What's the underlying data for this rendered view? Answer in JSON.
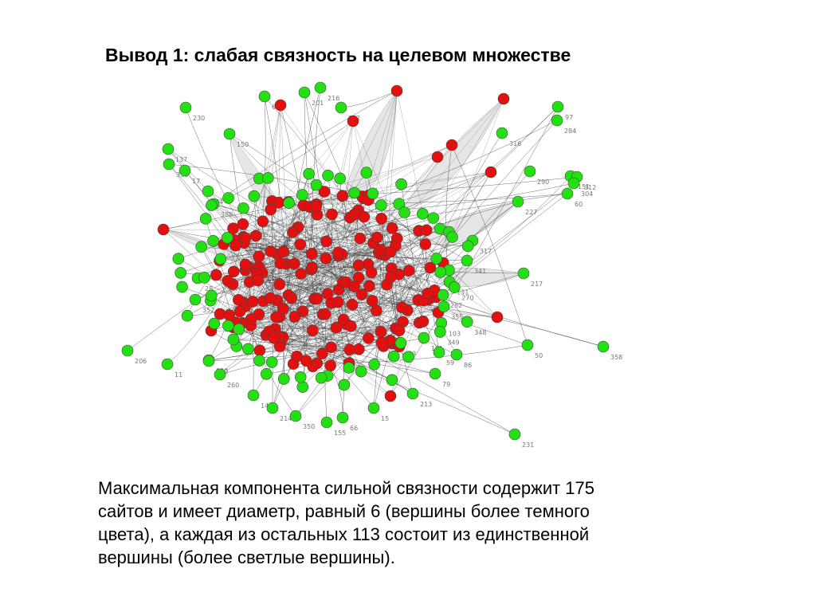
{
  "slide": {
    "title": "Вывод 1: слабая связность на целевом множестве",
    "body_lines": [
      "Максимальная компонента сильной связности содержит 175",
      "сайтов и имеет диаметр, равный 6 (вершины более темного",
      "цвета), а каждая из остальных 113 состоит из единственной",
      "вершины (более светлые вершины)."
    ]
  },
  "graph": {
    "colors": {
      "scc_node": "#e31010",
      "singleton_node": "#22e011",
      "node_outline": "#444444",
      "edge": "#333333",
      "edge_fill": "#e6e6e6"
    },
    "scc_node_count": 175,
    "singleton_node_count": 113,
    "labels": [
      "230",
      "137",
      "336",
      "17",
      "206",
      "11",
      "97",
      "284",
      "151",
      "312",
      "304",
      "60",
      "358",
      "50",
      "231",
      "217",
      "227",
      "290",
      "316",
      "216",
      "201",
      "65",
      "262",
      "150",
      "330",
      "170",
      "260",
      "141",
      "214",
      "350",
      "155",
      "66",
      "15",
      "213",
      "79",
      "86",
      "317",
      "341",
      "357",
      "28",
      "34",
      "388",
      "131",
      "270",
      "282",
      "355",
      "348",
      "103",
      "349",
      "161",
      "59",
      "39"
    ]
  }
}
